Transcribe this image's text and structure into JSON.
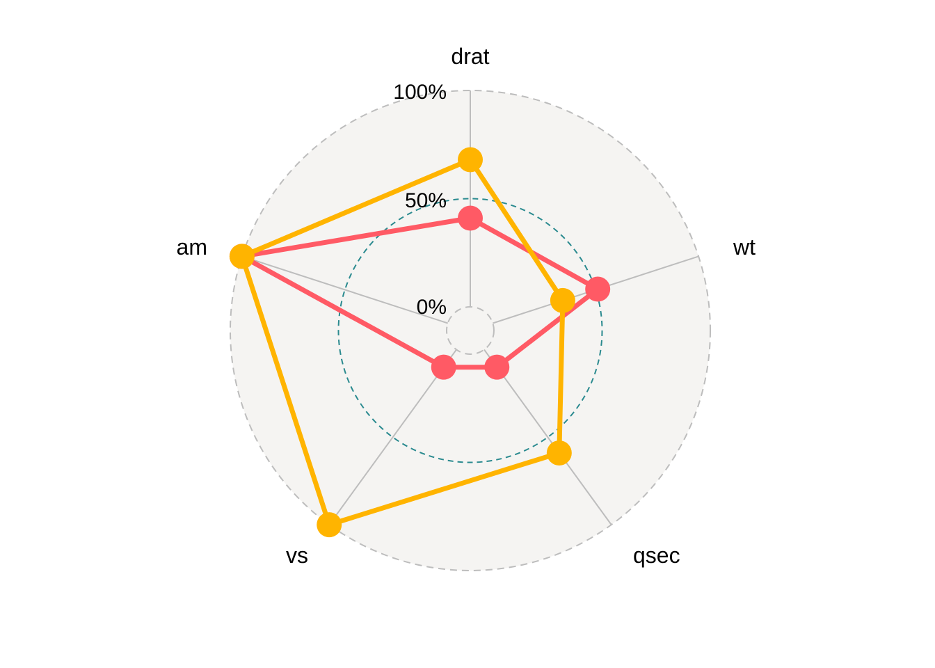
{
  "chart_data": {
    "type": "radar",
    "axes": [
      "drat",
      "wt",
      "qsec",
      "vs",
      "am"
    ],
    "grid_labels": [
      "0%",
      "50%",
      "100%"
    ],
    "grid_values": [
      0,
      0.5,
      1
    ],
    "range": [
      0,
      1
    ],
    "series": [
      {
        "color": "#FF5A65",
        "values": [
          0.41,
          0.51,
          0.1,
          0.1,
          1.0
        ]
      },
      {
        "color": "#FFB400",
        "values": [
          0.68,
          0.34,
          0.59,
          1.0,
          1.0
        ]
      }
    ],
    "colors": {
      "panel_fill": "#F5F4F2",
      "outer_ring": "#BDBDBD",
      "mid_ring": "#2A8A8F",
      "spoke": "#BDBDBD"
    }
  }
}
